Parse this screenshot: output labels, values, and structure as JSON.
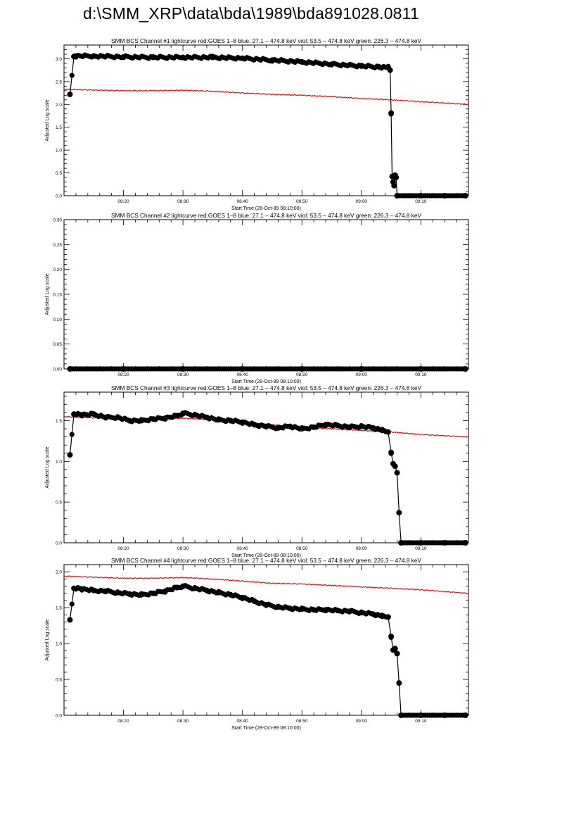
{
  "page": {
    "title": "d:\\SMM_XRP\\data\\bda\\1989\\bda891028.0811"
  },
  "colors": {
    "goes": "#e00000",
    "bcs": "#000000",
    "axes": "#000000",
    "background": "#ffffff"
  },
  "chart_data": [
    {
      "type": "line",
      "title": "SMM BCS Channel #1 lightcurve  red:GOES 1–8  blue: 27.1 – 474.8 keV  viol: 53.5 – 474.8 keV  green: 226.3 – 474.8 keV",
      "xlabel": "Start Time (28-Oct-89 08:10:00)",
      "ylabel": "Adjusted Log scale",
      "xlim": [
        "08:10:00",
        "09:18:00"
      ],
      "ylim": [
        0,
        3.3
      ],
      "x_ticks": [
        "08:20",
        "08:30",
        "08:40",
        "08:50",
        "09:00",
        "09:10"
      ],
      "y_ticks": [
        "0.0",
        "0.5",
        "1.0",
        "1.5",
        "2.0",
        "2.5",
        "3.0"
      ],
      "grid": false,
      "series": [
        {
          "color": "#e00000",
          "marker": "none",
          "x": [
            "08:10:00",
            "08:20:00",
            "08:25:00",
            "08:30:00",
            "08:35:00",
            "08:40:00",
            "08:45:00",
            "08:50:00",
            "08:55:00",
            "09:00:00",
            "09:05:00",
            "09:10:00",
            "09:18:00"
          ],
          "y": [
            2.33,
            2.3,
            2.3,
            2.31,
            2.29,
            2.25,
            2.22,
            2.2,
            2.17,
            2.13,
            2.1,
            2.06,
            2.0
          ]
        },
        {
          "color": "#000000",
          "marker": "circle",
          "x": [
            "08:11:00",
            "08:11:40",
            "08:12:00",
            "08:15:00",
            "08:20:00",
            "08:25:00",
            "08:30:00",
            "08:35:00",
            "08:40:00",
            "08:45:00",
            "08:50:00",
            "08:55:00",
            "09:00:00",
            "09:03:00",
            "09:04:30",
            "09:04:50",
            "09:05:00",
            "09:05:10",
            "09:05:20",
            "09:05:30",
            "09:05:40",
            "09:05:50",
            "09:06:00",
            "09:10:00",
            "09:14:00",
            "09:17:30"
          ],
          "y": [
            2.22,
            3.05,
            3.06,
            3.06,
            3.04,
            3.03,
            3.03,
            3.03,
            3.01,
            2.97,
            2.93,
            2.88,
            2.84,
            2.82,
            2.81,
            2.75,
            1.81,
            0.42,
            0.3,
            0.22,
            0.45,
            0.4,
            0.0,
            0.0,
            0.0,
            0.0
          ]
        }
      ]
    },
    {
      "type": "line",
      "title": "SMM BCS Channel #2 lightcurve  red:GOES 1–8  blue: 27.1 – 474.8 keV  viol: 53.5 – 474.8 keV  green: 226.3 – 474.8 keV",
      "xlabel": "Start Time (28-Oct-89 08:10:00)",
      "ylabel": "Adjusted Log scale",
      "xlim": [
        "08:10:00",
        "09:18:00"
      ],
      "ylim": [
        0,
        0.3
      ],
      "x_ticks": [
        "08:20",
        "08:30",
        "08:40",
        "08:50",
        "09:00",
        "09:10"
      ],
      "y_ticks": [
        "0.00",
        "0.05",
        "0.10",
        "0.15",
        "0.20",
        "0.25",
        "0.30"
      ],
      "grid": false,
      "series": [
        {
          "color": "#000000",
          "marker": "circle",
          "x": [
            "08:11:00",
            "08:20:00",
            "08:30:00",
            "08:40:00",
            "08:50:00",
            "09:00:00",
            "09:10:00",
            "09:17:30"
          ],
          "y": [
            0.0,
            0.0,
            0.0,
            0.0,
            0.0,
            0.0,
            0.0,
            0.0
          ]
        }
      ]
    },
    {
      "type": "line",
      "title": "SMM BCS Channel #3 lightcurve  red:GOES 1–8  blue: 27.1 – 474.8 keV  viol: 53.5 – 474.8 keV  green: 226.3 – 474.8 keV",
      "xlabel": "Start Time (28-Oct-89 08:10:00)",
      "ylabel": "Adjusted Log scale",
      "xlim": [
        "08:10:00",
        "09:18:00"
      ],
      "ylim": [
        0,
        1.85
      ],
      "x_ticks": [
        "08:20",
        "08:30",
        "08:40",
        "08:50",
        "09:00",
        "09:10"
      ],
      "y_ticks": [
        "0.0",
        "0.5",
        "1.0",
        "1.5"
      ],
      "grid": false,
      "series": [
        {
          "color": "#e00000",
          "marker": "none",
          "x": [
            "08:10:00",
            "08:20:00",
            "08:25:00",
            "08:30:00",
            "08:35:00",
            "08:40:00",
            "08:45:00",
            "08:50:00",
            "08:55:00",
            "09:00:00",
            "09:05:00",
            "09:10:00",
            "09:18:00"
          ],
          "y": [
            1.55,
            1.52,
            1.52,
            1.53,
            1.51,
            1.48,
            1.45,
            1.42,
            1.4,
            1.38,
            1.36,
            1.33,
            1.3
          ]
        },
        {
          "color": "#000000",
          "marker": "circle",
          "x": [
            "08:11:00",
            "08:11:40",
            "08:13:00",
            "08:15:00",
            "08:17:00",
            "08:19:00",
            "08:21:00",
            "08:23:00",
            "08:25:00",
            "08:27:00",
            "08:29:00",
            "08:30:00",
            "08:32:00",
            "08:34:00",
            "08:36:00",
            "08:38:00",
            "08:40:00",
            "08:42:00",
            "08:44:00",
            "08:46:00",
            "08:48:00",
            "08:50:00",
            "08:52:00",
            "08:54:00",
            "08:56:00",
            "08:58:00",
            "09:00:00",
            "09:02:00",
            "09:03:30",
            "09:04:30",
            "09:05:00",
            "09:05:20",
            "09:05:40",
            "09:06:00",
            "09:06:20",
            "09:06:40",
            "09:10:00",
            "09:14:00",
            "09:17:30"
          ],
          "y": [
            1.08,
            1.58,
            1.57,
            1.58,
            1.54,
            1.54,
            1.5,
            1.5,
            1.52,
            1.53,
            1.56,
            1.59,
            1.57,
            1.54,
            1.51,
            1.5,
            1.48,
            1.45,
            1.43,
            1.41,
            1.43,
            1.4,
            1.42,
            1.45,
            1.44,
            1.42,
            1.43,
            1.41,
            1.38,
            1.36,
            1.11,
            0.97,
            0.94,
            0.86,
            0.37,
            0.0,
            0.0,
            0.0,
            0.0
          ]
        }
      ]
    },
    {
      "type": "line",
      "title": "SMM BCS Channel #4 lightcurve  red:GOES 1–8  blue: 27.1 – 474.8 keV  viol: 53.5 – 474.8 keV  green: 226.3 – 474.8 keV",
      "xlabel": "Start Time (28-Oct-89 08:10:00)",
      "ylabel": "Adjusted Log scale",
      "xlim": [
        "08:10:00",
        "09:18:00"
      ],
      "ylim": [
        0,
        2.1
      ],
      "x_ticks": [
        "08:20",
        "08:30",
        "08:40",
        "08:50",
        "09:00",
        "09:10"
      ],
      "y_ticks": [
        "0.0",
        "0.5",
        "1.0",
        "1.5",
        "2.0"
      ],
      "grid": false,
      "series": [
        {
          "color": "#e00000",
          "marker": "none",
          "x": [
            "08:10:00",
            "08:20:00",
            "08:25:00",
            "08:30:00",
            "08:35:00",
            "08:40:00",
            "08:45:00",
            "08:50:00",
            "08:55:00",
            "09:00:00",
            "09:05:00",
            "09:10:00",
            "09:18:00"
          ],
          "y": [
            1.94,
            1.91,
            1.91,
            1.92,
            1.9,
            1.87,
            1.84,
            1.83,
            1.81,
            1.79,
            1.77,
            1.75,
            1.7
          ]
        },
        {
          "color": "#000000",
          "marker": "circle",
          "x": [
            "08:11:00",
            "08:11:40",
            "08:13:00",
            "08:15:00",
            "08:17:00",
            "08:19:00",
            "08:21:00",
            "08:23:00",
            "08:25:00",
            "08:27:00",
            "08:29:00",
            "08:30:00",
            "08:32:00",
            "08:34:00",
            "08:36:00",
            "08:38:00",
            "08:40:00",
            "08:42:00",
            "08:44:00",
            "08:46:00",
            "08:48:00",
            "08:50:00",
            "08:52:00",
            "08:54:00",
            "08:56:00",
            "08:58:00",
            "09:00:00",
            "09:02:00",
            "09:03:30",
            "09:04:30",
            "09:05:00",
            "09:05:20",
            "09:05:40",
            "09:06:00",
            "09:06:20",
            "09:06:40",
            "09:10:00",
            "09:14:00",
            "09:17:30"
          ],
          "y": [
            1.33,
            1.77,
            1.76,
            1.74,
            1.73,
            1.71,
            1.69,
            1.68,
            1.7,
            1.73,
            1.78,
            1.8,
            1.77,
            1.74,
            1.71,
            1.68,
            1.64,
            1.59,
            1.54,
            1.51,
            1.49,
            1.48,
            1.47,
            1.47,
            1.46,
            1.45,
            1.43,
            1.41,
            1.38,
            1.37,
            1.1,
            0.91,
            0.93,
            0.86,
            0.45,
            0.0,
            0.0,
            0.0,
            0.0
          ]
        }
      ]
    }
  ]
}
